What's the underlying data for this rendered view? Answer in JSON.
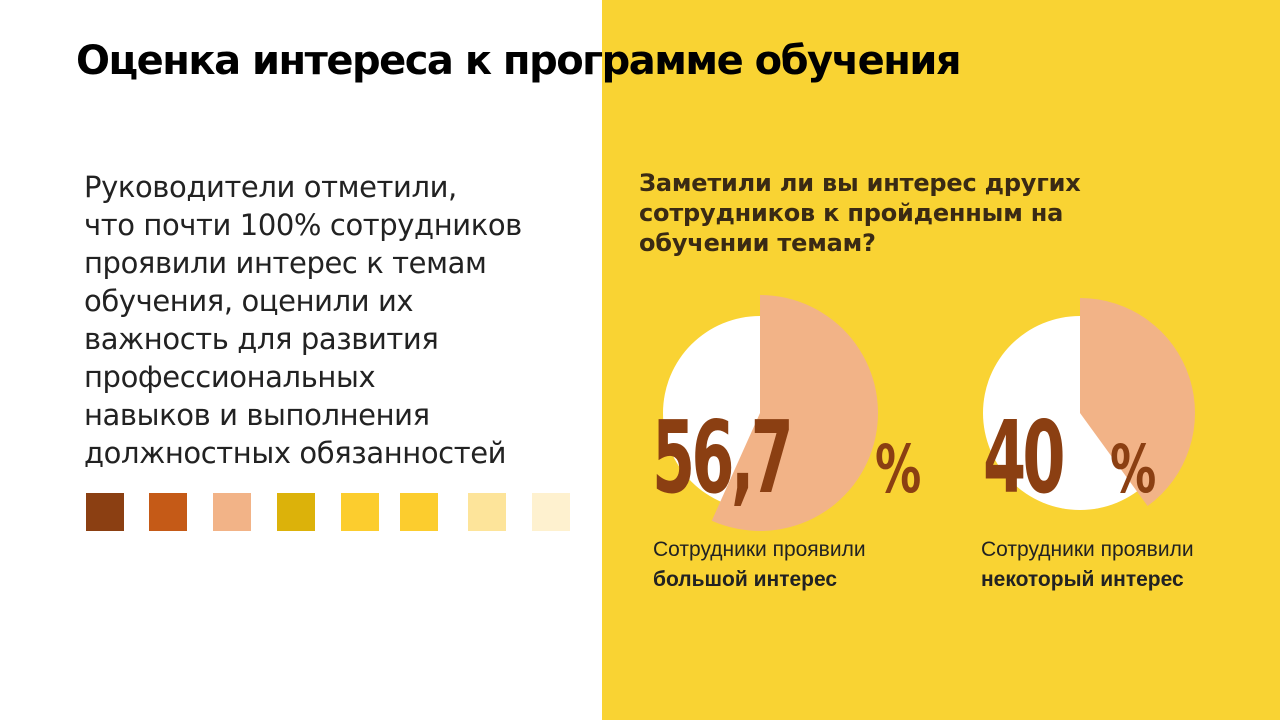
{
  "title": "Оценка интереса к программе обучения",
  "intro_lines": [
    "Руководители отметили,",
    "что почти 100% сотрудников",
    "проявили интерес к темам",
    "обучения, оценили их",
    "важность для развития",
    "профессиональных",
    "навыков и выполнения",
    "должностных обязанностей"
  ],
  "palette": [
    "#8b3f12",
    "#c55a17",
    "#f2b387",
    "#dcb20a",
    "#fccd2e",
    "#fccd2e",
    "#fde49a",
    "#fef1cf"
  ],
  "question_lines": [
    "Заметили ли вы интерес других",
    "сотрудников к пройденным на",
    "обучении темам?"
  ],
  "stats": [
    {
      "value": "56,7",
      "unit": "%",
      "caption_line1": "Сотрудники проявили",
      "caption_line2": "большой интерес"
    },
    {
      "value": "40",
      "unit": "%",
      "caption_line1": "Сотрудники проявили",
      "caption_line2": "некоторый интерес"
    }
  ],
  "chart_data": [
    {
      "type": "pie",
      "title": "",
      "slices": [
        {
          "label": "большой интерес",
          "value": 56.7,
          "color": "#f2b387"
        },
        {
          "label": "",
          "value": 43.3,
          "color": "#ffffff"
        }
      ]
    },
    {
      "type": "pie",
      "title": "",
      "slices": [
        {
          "label": "некоторый интерес",
          "value": 40,
          "color": "#f2b387"
        },
        {
          "label": "",
          "value": 60,
          "color": "#ffffff"
        }
      ]
    }
  ]
}
